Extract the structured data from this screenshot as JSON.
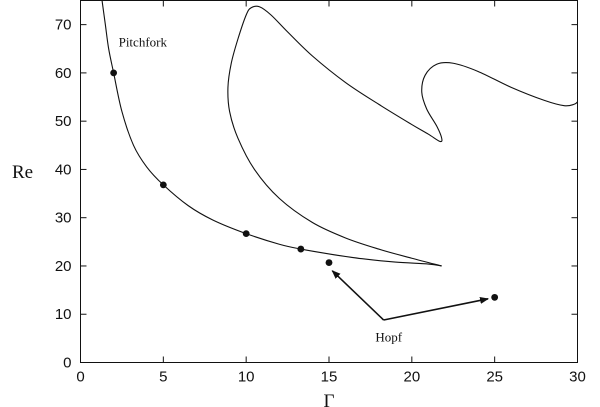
{
  "chart_data": {
    "type": "line",
    "xlabel": "Γ",
    "ylabel": "Re",
    "xlim": [
      0,
      30
    ],
    "ylim": [
      0,
      75
    ],
    "xticks": [
      0,
      5,
      10,
      15,
      20,
      25,
      30
    ],
    "yticks": [
      0,
      10,
      20,
      30,
      40,
      50,
      60,
      70
    ],
    "grid": false,
    "series": [
      {
        "points": [
          [
            1.3,
            75
          ],
          [
            1.5,
            70
          ],
          [
            1.7,
            65
          ],
          [
            2.0,
            60
          ],
          [
            2.5,
            52
          ],
          [
            3.2,
            45
          ],
          [
            4.0,
            40.5
          ],
          [
            5.0,
            36.8
          ],
          [
            6.5,
            32.5
          ],
          [
            8.0,
            29.5
          ],
          [
            10.0,
            26.7
          ],
          [
            12.0,
            24.5
          ],
          [
            13.3,
            23.5
          ],
          [
            15.0,
            22.5
          ],
          [
            17.0,
            21.5
          ],
          [
            19.0,
            20.8
          ],
          [
            21.0,
            20.4
          ],
          [
            21.8,
            20.0
          ]
        ]
      },
      {
        "points": [
          [
            21.8,
            20.0
          ],
          [
            20.0,
            21.6
          ],
          [
            18.0,
            23.5
          ],
          [
            16.0,
            25.8
          ],
          [
            14.0,
            29.0
          ],
          [
            12.0,
            34.0
          ],
          [
            10.5,
            40.0
          ],
          [
            9.5,
            46.5
          ],
          [
            9.0,
            52.0
          ],
          [
            8.9,
            57.0
          ],
          [
            9.1,
            62.0
          ],
          [
            9.5,
            67.0
          ],
          [
            10.0,
            72.0
          ],
          [
            10.3,
            73.5
          ],
          [
            10.8,
            73.7
          ],
          [
            11.5,
            72.0
          ],
          [
            12.5,
            68.5
          ],
          [
            14.0,
            63.5
          ],
          [
            16.0,
            58.0
          ],
          [
            18.0,
            53.5
          ],
          [
            20.0,
            49.3
          ],
          [
            21.0,
            47.3
          ],
          [
            21.7,
            45.8
          ],
          [
            21.8,
            46.5
          ],
          [
            21.5,
            49.0
          ],
          [
            20.9,
            52.5
          ],
          [
            20.6,
            56.0
          ],
          [
            20.8,
            59.5
          ],
          [
            21.5,
            61.8
          ],
          [
            22.5,
            62.0
          ],
          [
            24.0,
            60.3
          ],
          [
            26.0,
            57.0
          ],
          [
            28.0,
            54.3
          ],
          [
            29.2,
            53.2
          ],
          [
            29.8,
            53.5
          ],
          [
            30.0,
            54.0
          ]
        ]
      }
    ],
    "markers": [
      {
        "x": 2.0,
        "y": 60.0
      },
      {
        "x": 5.0,
        "y": 36.8
      },
      {
        "x": 10.0,
        "y": 26.7
      },
      {
        "x": 13.3,
        "y": 23.5
      },
      {
        "x": 15.0,
        "y": 20.7
      },
      {
        "x": 25.0,
        "y": 13.5
      }
    ],
    "annotations": [
      {
        "text": "Pitchfork",
        "x": 2.3,
        "y": 65.5
      },
      {
        "text": "Hopf",
        "x": 17.8,
        "y": 4.4
      }
    ],
    "arrows": [
      {
        "from": [
          18.3,
          8.8
        ],
        "to": [
          15.2,
          19.0
        ]
      },
      {
        "from": [
          18.3,
          8.8
        ],
        "to": [
          24.6,
          13.2
        ]
      }
    ]
  }
}
